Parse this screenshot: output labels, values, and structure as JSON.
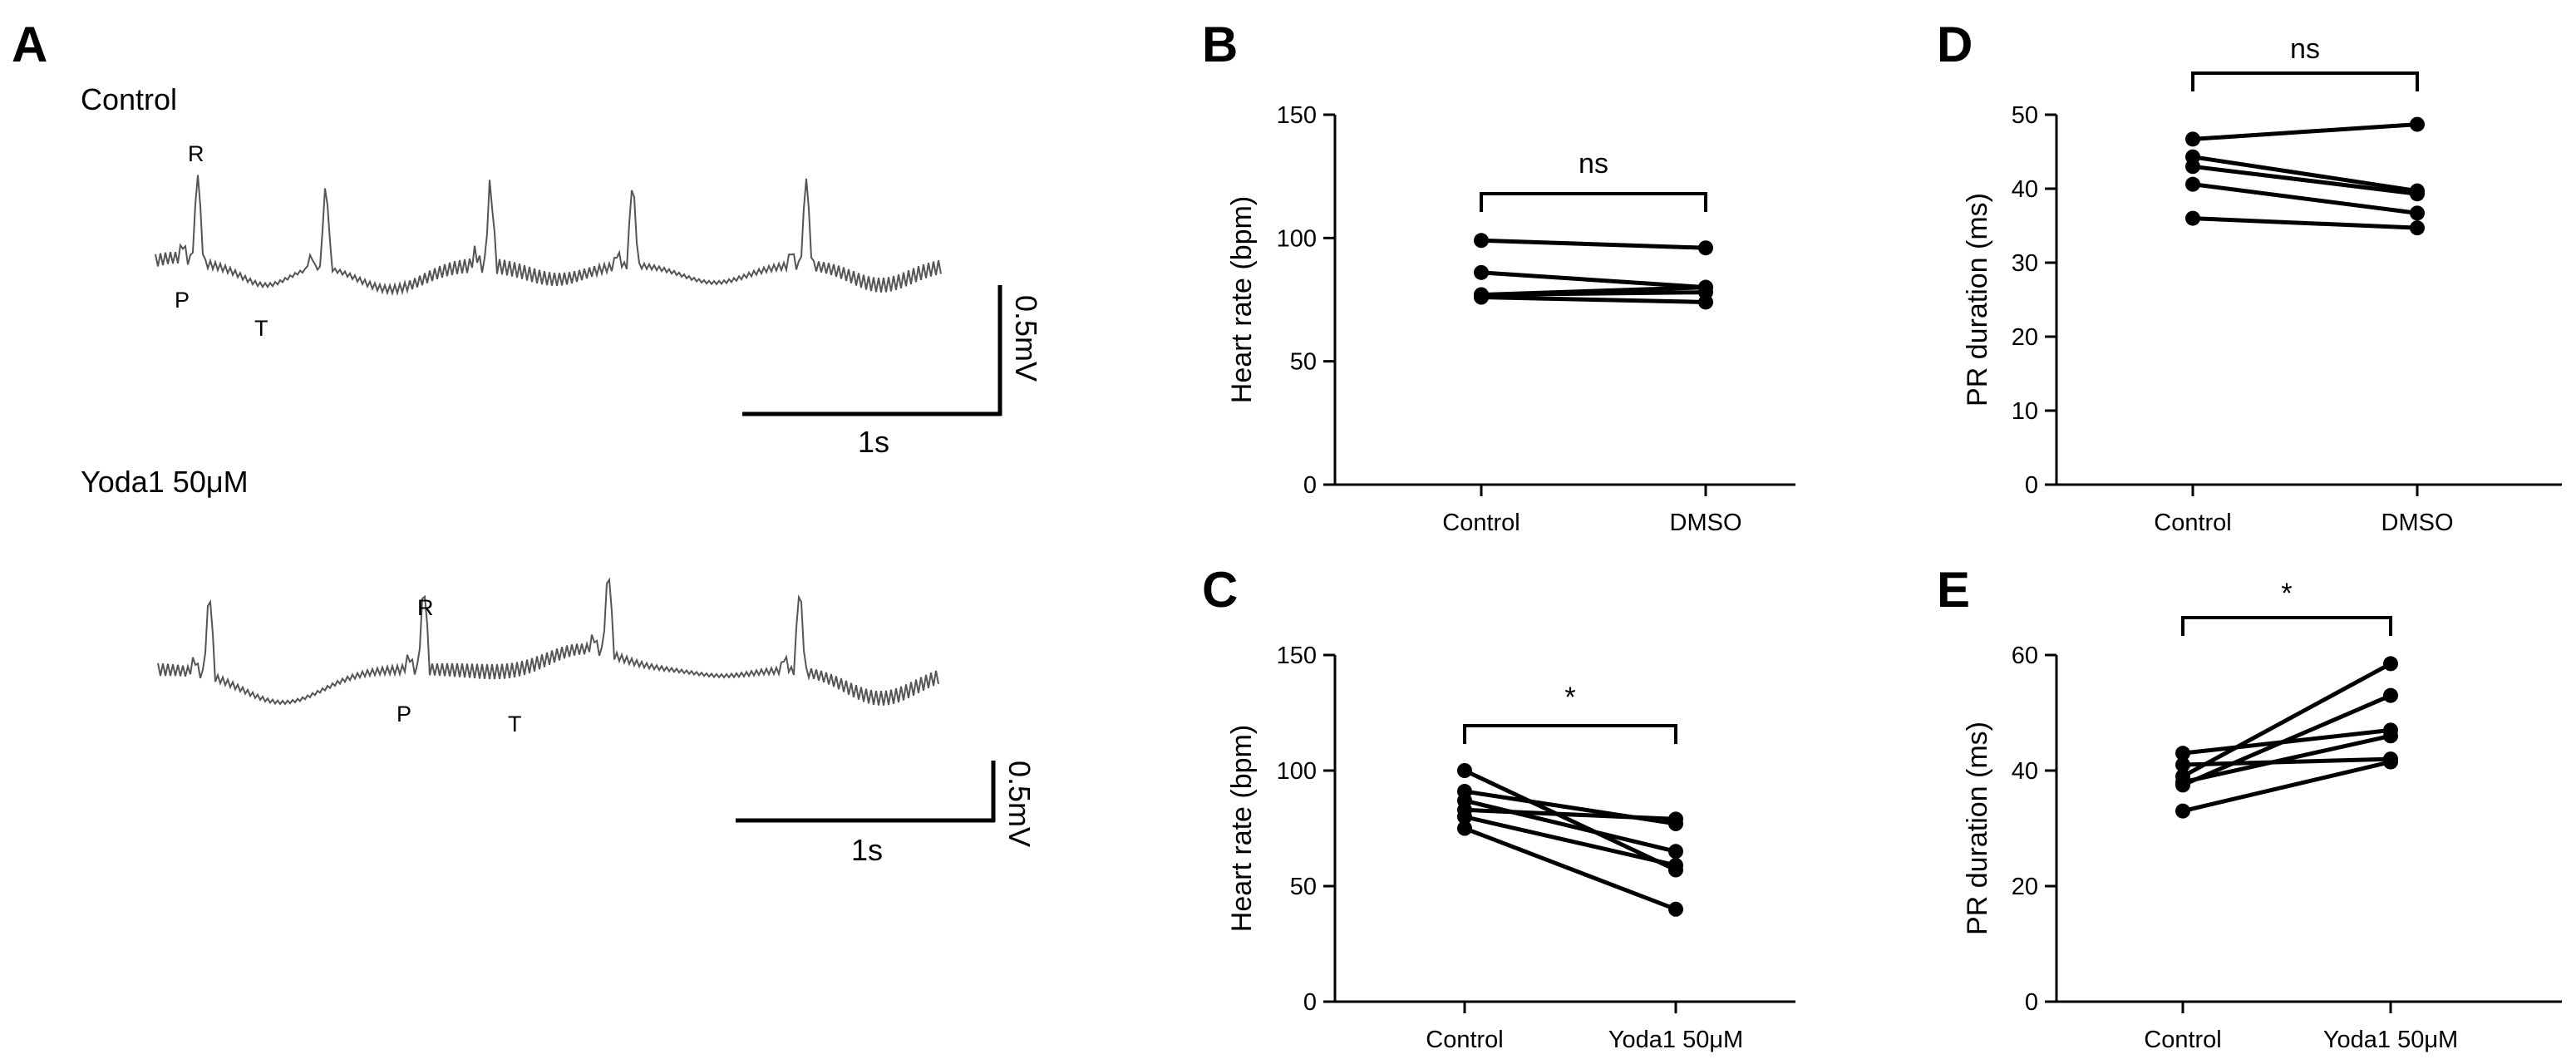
{
  "panels": {
    "A": "A",
    "B": "B",
    "C": "C",
    "D": "D",
    "E": "E"
  },
  "ecg": {
    "traces": [
      {
        "label": "Control",
        "waves": {
          "R": "R",
          "P": "P",
          "T": "T"
        },
        "scale_v": "0.5mV",
        "scale_t": "1s"
      },
      {
        "label": "Yoda1 50μM",
        "waves": {
          "R": "R",
          "P": "P",
          "T": "T"
        },
        "scale_v": "0.5mV",
        "scale_t": "1s"
      }
    ]
  },
  "chart_data": [
    {
      "id": "B",
      "type": "paired-line",
      "ylabel": "Heart rate (bpm)",
      "categories": [
        "Control",
        "DMSO"
      ],
      "ylim": [
        0,
        150
      ],
      "yticks": [
        0,
        50,
        100,
        150
      ],
      "significance": "ns",
      "series": [
        {
          "values": [
            99,
            96
          ]
        },
        {
          "values": [
            86,
            80
          ]
        },
        {
          "values": [
            77,
            78
          ]
        },
        {
          "values": [
            76,
            74
          ]
        },
        {
          "values": [
            77,
            80
          ]
        }
      ]
    },
    {
      "id": "C",
      "type": "paired-line",
      "ylabel": "Heart rate (bpm)",
      "categories": [
        "Control",
        "Yoda1 50μM"
      ],
      "ylim": [
        0,
        150
      ],
      "yticks": [
        0,
        50,
        100,
        150
      ],
      "significance": "*",
      "series": [
        {
          "values": [
            100,
            57
          ]
        },
        {
          "values": [
            91,
            77
          ]
        },
        {
          "values": [
            87,
            65
          ]
        },
        {
          "values": [
            83,
            79
          ]
        },
        {
          "values": [
            80,
            59
          ]
        },
        {
          "values": [
            75,
            40
          ]
        }
      ]
    },
    {
      "id": "D",
      "type": "paired-line",
      "ylabel": "PR duration (ms)",
      "categories": [
        "Control",
        "DMSO"
      ],
      "ylim": [
        0,
        50
      ],
      "yticks": [
        0,
        10,
        20,
        30,
        40,
        50
      ],
      "significance": "ns",
      "series": [
        {
          "values": [
            46.7,
            48.7
          ]
        },
        {
          "values": [
            44.3,
            39.7
          ]
        },
        {
          "values": [
            43.0,
            39.3
          ]
        },
        {
          "values": [
            40.6,
            36.7
          ]
        },
        {
          "values": [
            36.0,
            34.7
          ]
        }
      ]
    },
    {
      "id": "E",
      "type": "paired-line",
      "ylabel": "PR duration (ms)",
      "categories": [
        "Control",
        "Yoda1 50μM"
      ],
      "ylim": [
        0,
        60
      ],
      "yticks": [
        0,
        20,
        40,
        60
      ],
      "significance": "*",
      "series": [
        {
          "values": [
            43,
            47
          ]
        },
        {
          "values": [
            41,
            42
          ]
        },
        {
          "values": [
            39,
            58.5
          ]
        },
        {
          "values": [
            37.5,
            53
          ]
        },
        {
          "values": [
            38,
            46
          ]
        },
        {
          "values": [
            33,
            41.5
          ]
        }
      ]
    }
  ]
}
